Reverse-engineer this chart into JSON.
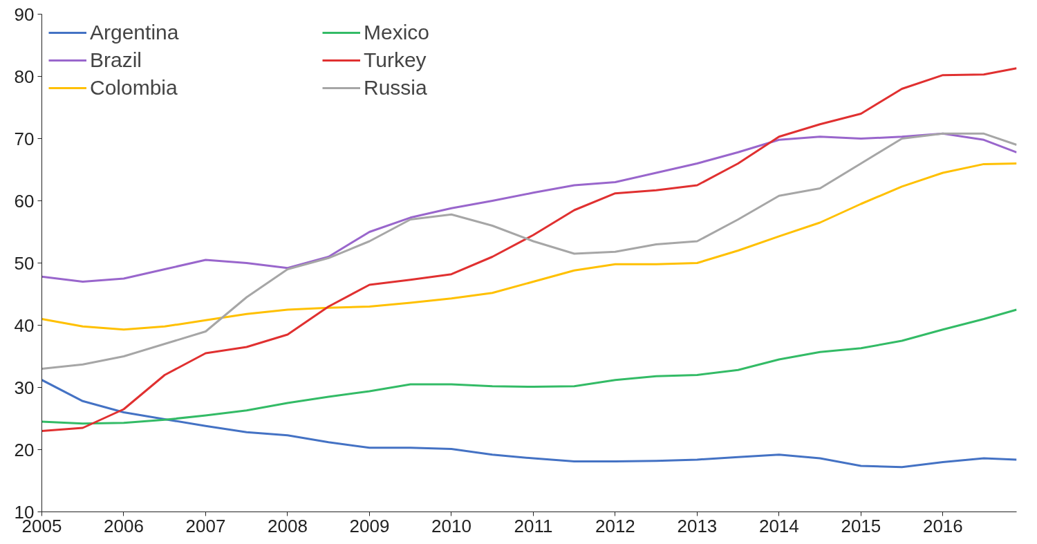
{
  "chart_data": {
    "type": "line",
    "x": [
      2005,
      2005.5,
      2006,
      2006.5,
      2007,
      2007.5,
      2008,
      2008.5,
      2009,
      2009.5,
      2010,
      2010.5,
      2011,
      2011.5,
      2012,
      2012.5,
      2013,
      2013.5,
      2014,
      2014.5,
      2015,
      2015.5,
      2016,
      2016.5,
      2016.9
    ],
    "series": [
      {
        "name": "Argentina",
        "color": "#4472c4",
        "values": [
          31.2,
          27.8,
          26,
          24.9,
          23.8,
          22.8,
          22.3,
          21.2,
          20.3,
          20.3,
          20.1,
          19.2,
          18.6,
          18.1,
          18.1,
          18.2,
          18.4,
          18.8,
          19.2,
          18.6,
          17.4,
          17.2,
          18,
          18.6,
          18.4
        ]
      },
      {
        "name": "Brazil",
        "color": "#9966cc",
        "values": [
          47.8,
          47,
          47.5,
          49,
          50.5,
          50,
          49.2,
          51,
          55,
          57.3,
          58.8,
          60,
          61.3,
          62.5,
          63,
          64.5,
          66,
          67.8,
          69.8,
          70.3,
          70,
          70.3,
          70.8,
          69.8,
          67.8
        ]
      },
      {
        "name": "Colombia",
        "color": "#ffc000",
        "values": [
          41,
          39.8,
          39.3,
          39.8,
          40.8,
          41.8,
          42.5,
          42.8,
          43,
          43.6,
          44.3,
          45.2,
          47,
          48.8,
          49.8,
          49.8,
          50,
          52,
          54.3,
          56.5,
          59.5,
          62.3,
          64.5,
          65.9,
          66
        ]
      },
      {
        "name": "Mexico",
        "color": "#33bb66",
        "values": [
          24.5,
          24.2,
          24.3,
          24.8,
          25.5,
          26.3,
          27.5,
          28.5,
          29.4,
          30.5,
          30.5,
          30.2,
          30.1,
          30.2,
          31.2,
          31.8,
          32,
          32.8,
          34.5,
          35.7,
          36.3,
          37.5,
          39.3,
          41,
          42.5
        ]
      },
      {
        "name": "Turkey",
        "color": "#e03030",
        "values": [
          23,
          23.5,
          26.5,
          32,
          35.5,
          36.5,
          38.5,
          43,
          46.5,
          47.3,
          48.2,
          51,
          54.5,
          58.5,
          61.2,
          61.7,
          62.5,
          66,
          70.3,
          72.3,
          74,
          78,
          80.2,
          80.3,
          81.3
        ]
      },
      {
        "name": "Russia",
        "color": "#a6a6a6",
        "values": [
          33,
          33.7,
          35,
          37,
          39,
          44.5,
          49,
          50.8,
          53.5,
          57,
          57.8,
          56,
          53.5,
          51.5,
          51.8,
          53,
          53.5,
          57,
          60.8,
          62,
          66,
          70,
          70.8,
          70.8,
          69
        ]
      }
    ],
    "xlim": [
      2005,
      2016.9
    ],
    "xticks": [
      2005,
      2006,
      2007,
      2008,
      2009,
      2010,
      2011,
      2012,
      2013,
      2014,
      2015,
      2016
    ],
    "ylim": [
      10,
      90
    ],
    "yticks": [
      10,
      20,
      30,
      40,
      50,
      60,
      70,
      80,
      90
    ],
    "grid": false,
    "legend": "top left",
    "marker": "none",
    "line_style": "solid"
  }
}
